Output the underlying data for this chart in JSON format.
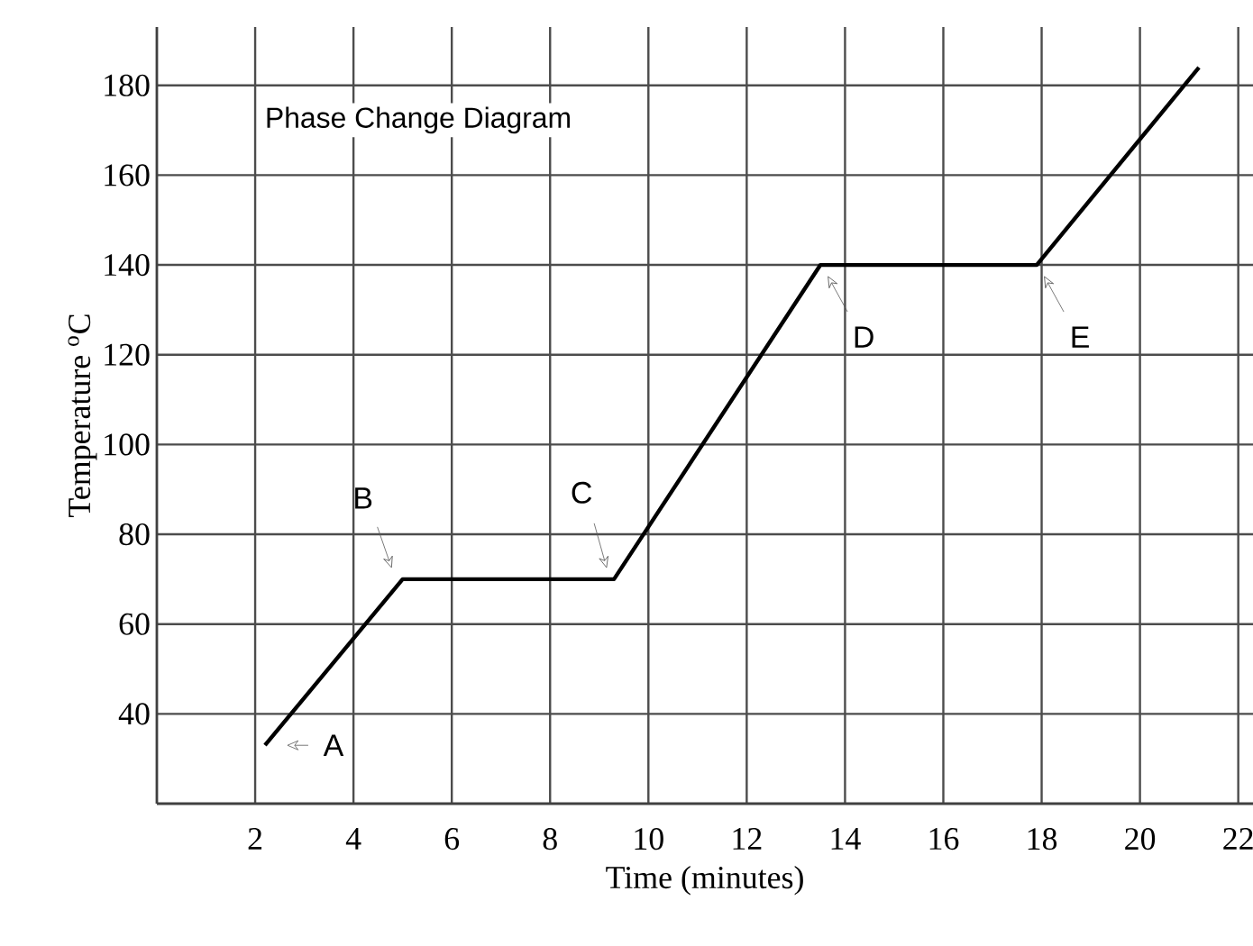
{
  "chart_data": {
    "type": "line",
    "title": "Phase Change Diagram",
    "xlabel": "Time (minutes)",
    "ylabel": "Temperature $^{o}$C",
    "x": [
      2.2,
      5.0,
      9.3,
      13.5,
      17.9,
      21.2
    ],
    "series": [
      {
        "color": "#000000",
        "values": [
          33,
          70,
          70,
          140,
          140,
          184
        ]
      }
    ],
    "xlim": [
      0,
      22.3
    ],
    "ylim": [
      20,
      193
    ],
    "xticks": [
      2,
      4,
      6,
      8,
      10,
      12,
      14,
      16,
      18,
      20,
      22
    ],
    "yticks": [
      40,
      60,
      80,
      100,
      120,
      140,
      160,
      180
    ],
    "grid": true,
    "marker": "none",
    "line_style": "solid",
    "annotations": [
      {
        "text": "A",
        "x": 2.2,
        "y": 33
      },
      {
        "text": "B",
        "x": 5.0,
        "y": 70
      },
      {
        "text": "C",
        "x": 9.3,
        "y": 70
      },
      {
        "text": "D",
        "x": 13.5,
        "y": 140
      },
      {
        "text": "E",
        "x": 17.9,
        "y": 140
      }
    ]
  }
}
